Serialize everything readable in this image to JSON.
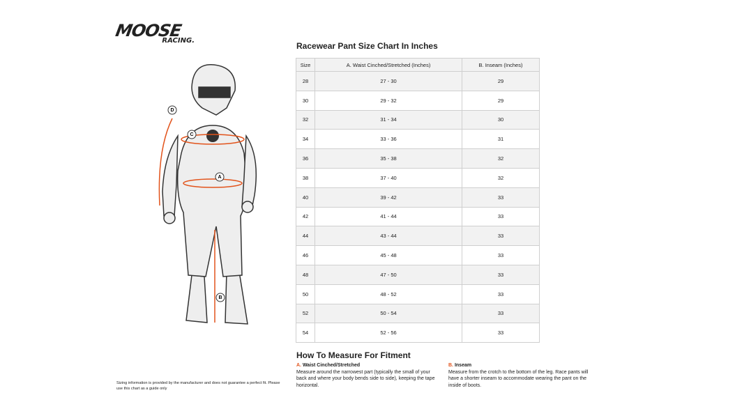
{
  "logo": {
    "brand": "MOOSE",
    "sub": "RACING."
  },
  "figure": {
    "labels": [
      "A",
      "B",
      "C",
      "D"
    ]
  },
  "title": "Racewear Pant Size Chart In Inches",
  "table": {
    "headers": [
      "Size",
      "A. Waist Cinched/Stretched (Inches)",
      "B. Inseam (Inches)"
    ],
    "rows": [
      [
        "28",
        "27 - 30",
        "29"
      ],
      [
        "30",
        "29 - 32",
        "29"
      ],
      [
        "32",
        "31 - 34",
        "30"
      ],
      [
        "34",
        "33 - 36",
        "31"
      ],
      [
        "36",
        "35 - 38",
        "32"
      ],
      [
        "38",
        "37 - 40",
        "32"
      ],
      [
        "40",
        "39 - 42",
        "33"
      ],
      [
        "42",
        "41 - 44",
        "33"
      ],
      [
        "44",
        "43 - 44",
        "33"
      ],
      [
        "46",
        "45 - 48",
        "33"
      ],
      [
        "48",
        "47 - 50",
        "33"
      ],
      [
        "50",
        "48 - 52",
        "33"
      ],
      [
        "52",
        "50 - 54",
        "33"
      ],
      [
        "54",
        "52 - 56",
        "33"
      ]
    ]
  },
  "fitment": {
    "title": "How To Measure For Fitment",
    "items": [
      {
        "letter": "A.",
        "label": "Waist Cinched/Stretched",
        "text": "Measure around the narrowest part (typically the small of your back and where your body bends side to side), keeping the tape horizontal."
      },
      {
        "letter": "B.",
        "label": "Inseam",
        "text": "Measure from the crotch to the bottom of the leg. Race pants will have a shorter inseam to accommodate wearing the pant on the inside of boots."
      }
    ]
  },
  "disclaimer": "Sizing information is provided by the manufacturer and does not guarantee a perfect fit. Please use this chart as a guide only"
}
